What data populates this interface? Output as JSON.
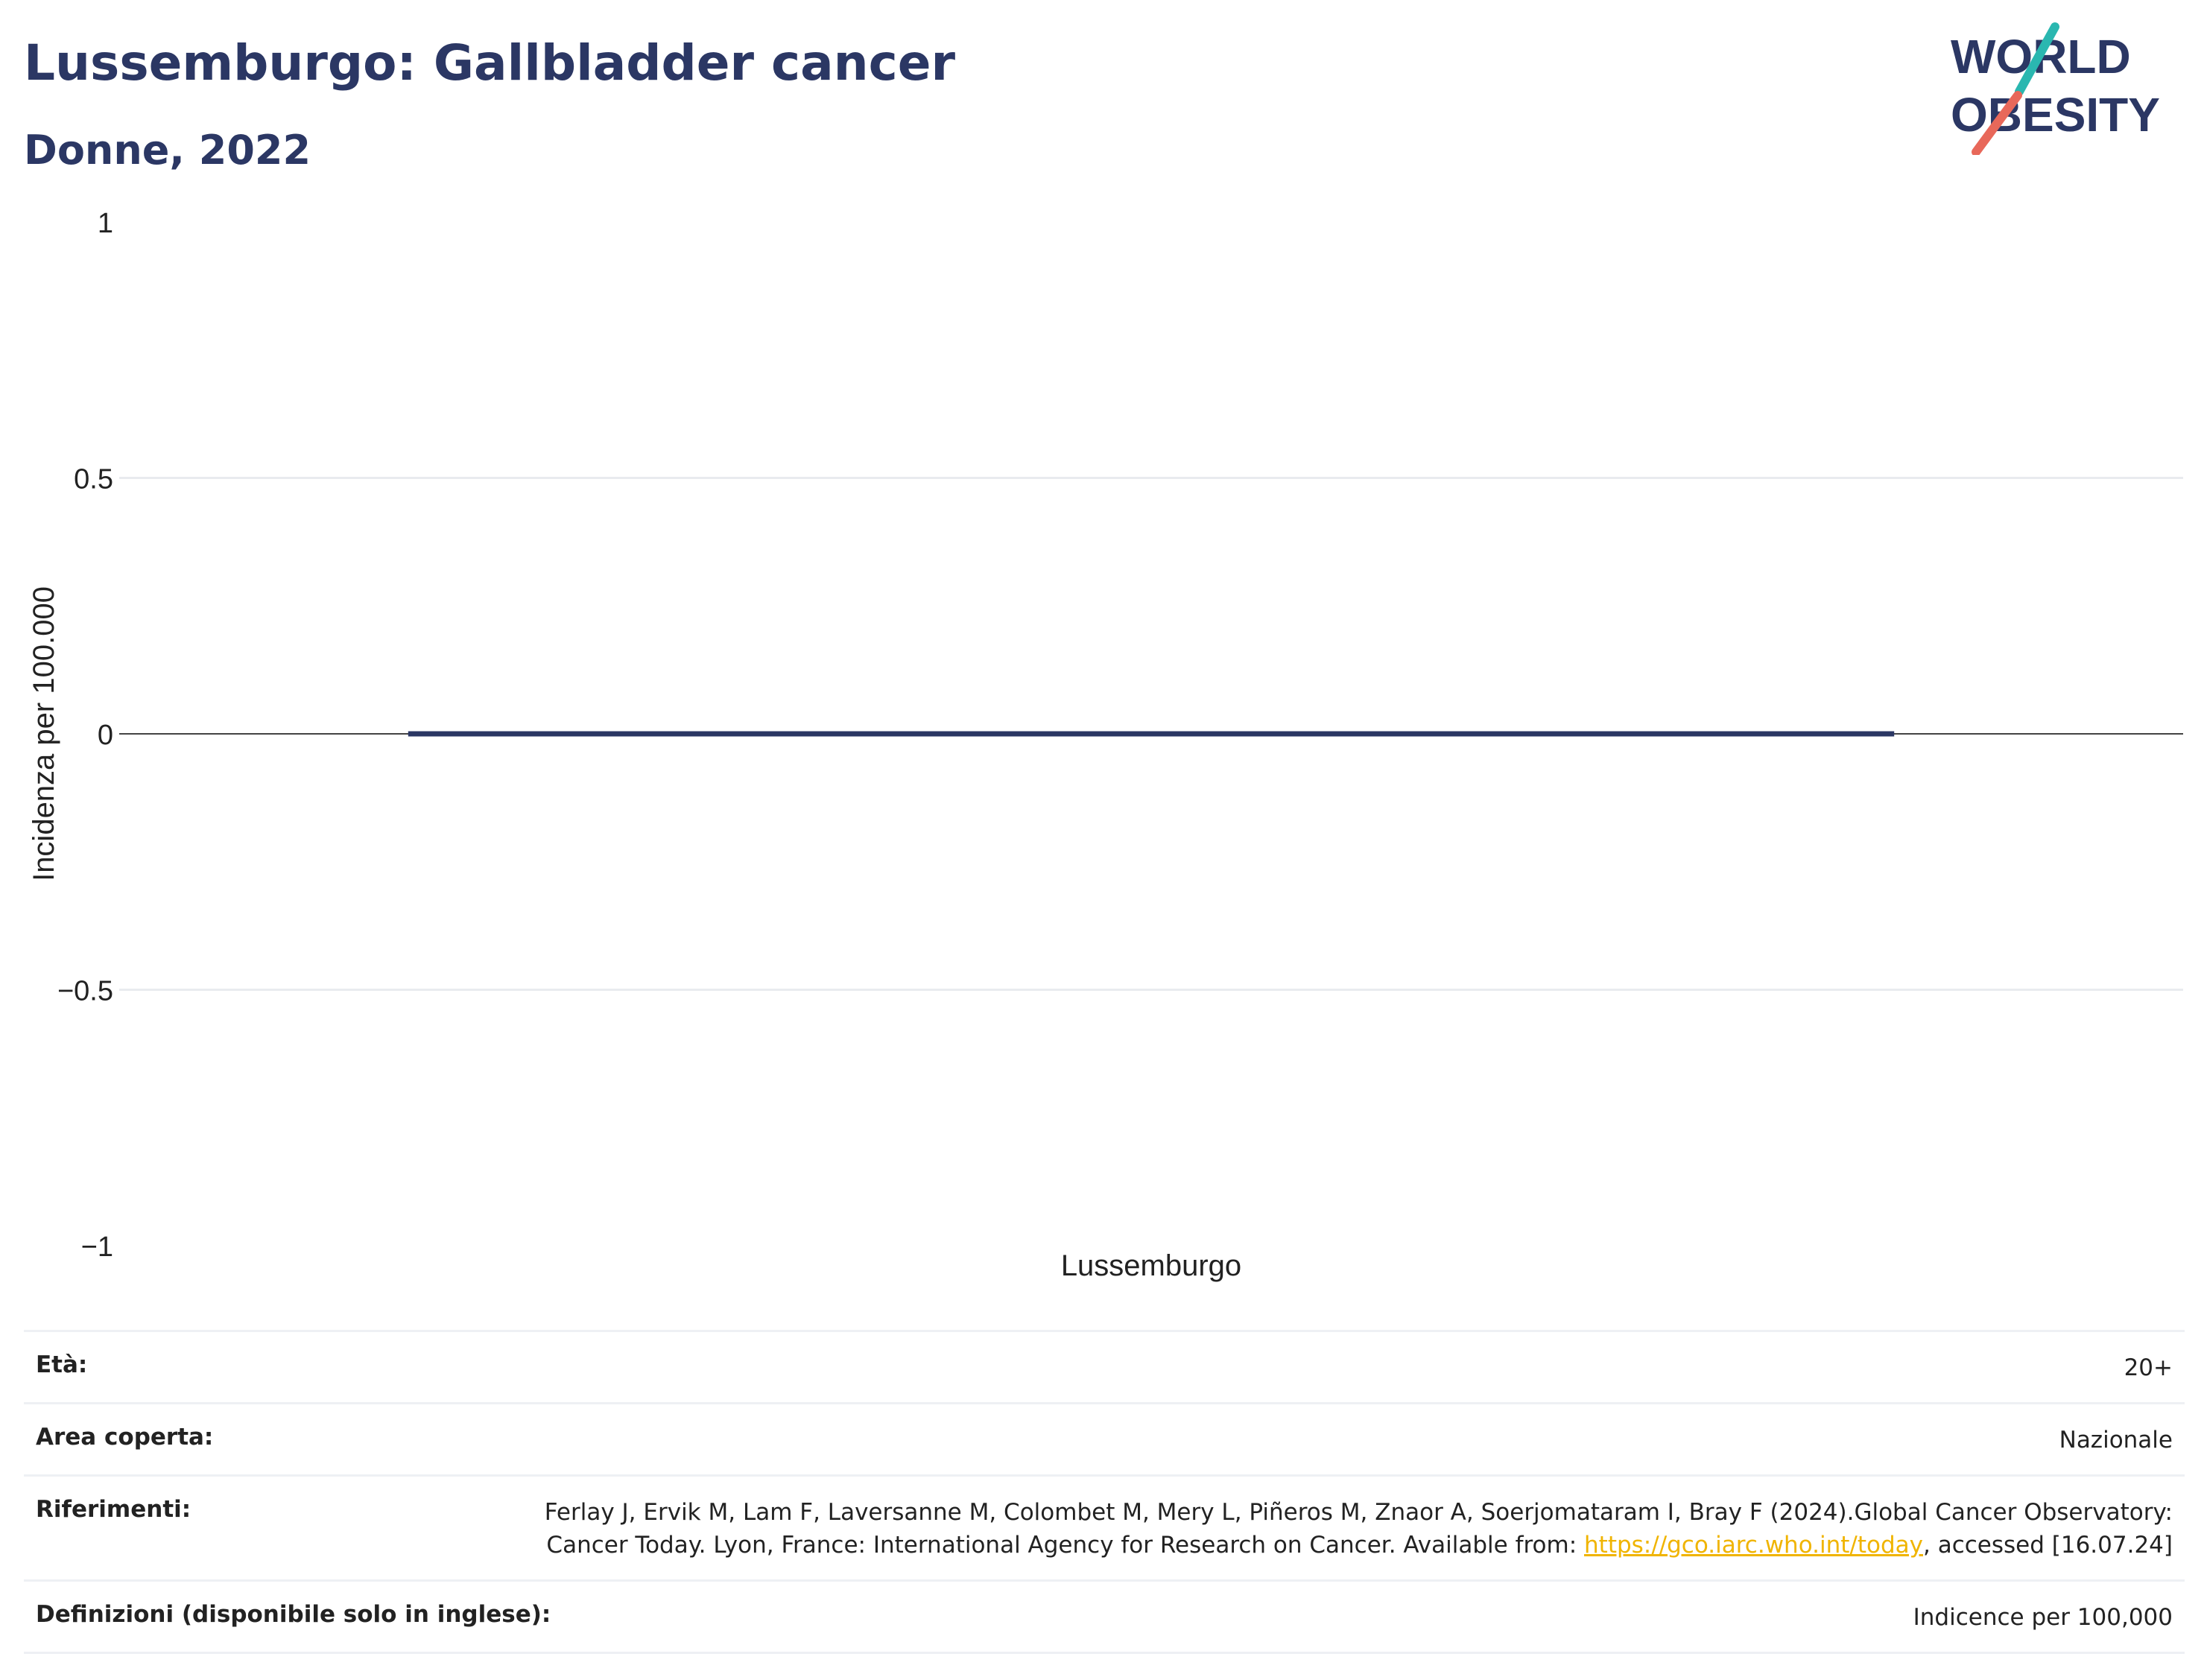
{
  "header": {
    "title": "Lussemburgo: Gallbladder cancer",
    "subtitle": "Donne, 2022"
  },
  "logo": {
    "line1": "WORLD",
    "line2": "OBESITY",
    "text_color": "#2b3764",
    "slash_colors": [
      "#2ab7b0",
      "#e8685a"
    ]
  },
  "chart_data": {
    "type": "bar",
    "categories": [
      "Lussemburgo"
    ],
    "series": [
      {
        "values": [
          0
        ]
      }
    ],
    "ylabel": "Incidenza per 100.000",
    "ylim": [
      -1,
      1
    ],
    "yticks": [
      1,
      0.5,
      0,
      -0.5,
      -1
    ],
    "ytick_labels": [
      "1",
      "0.5",
      "0",
      "−0.5",
      "−1"
    ],
    "grid": true,
    "bar_color": "#2b3764"
  },
  "info": {
    "age_label": "Età:",
    "age_value": "20+",
    "area_label": "Area coperta:",
    "area_value": "Nazionale",
    "ref_label": "Riferimenti:",
    "ref_text_before": "Ferlay J, Ervik M, Lam F, Laversanne M, Colombet M, Mery L, Piñeros M, Znaor A, Soerjomataram I, Bray F (2024).Global Cancer Observatory: Cancer Today. Lyon, France: International Agency for Research on Cancer. Available from: ",
    "ref_link": "https://gco.iarc.who.int/today",
    "ref_text_after": ", accessed [16.07.24]",
    "def_label": "Definizioni (disponibile solo in inglese):",
    "def_value": "Indicence per 100,000"
  }
}
